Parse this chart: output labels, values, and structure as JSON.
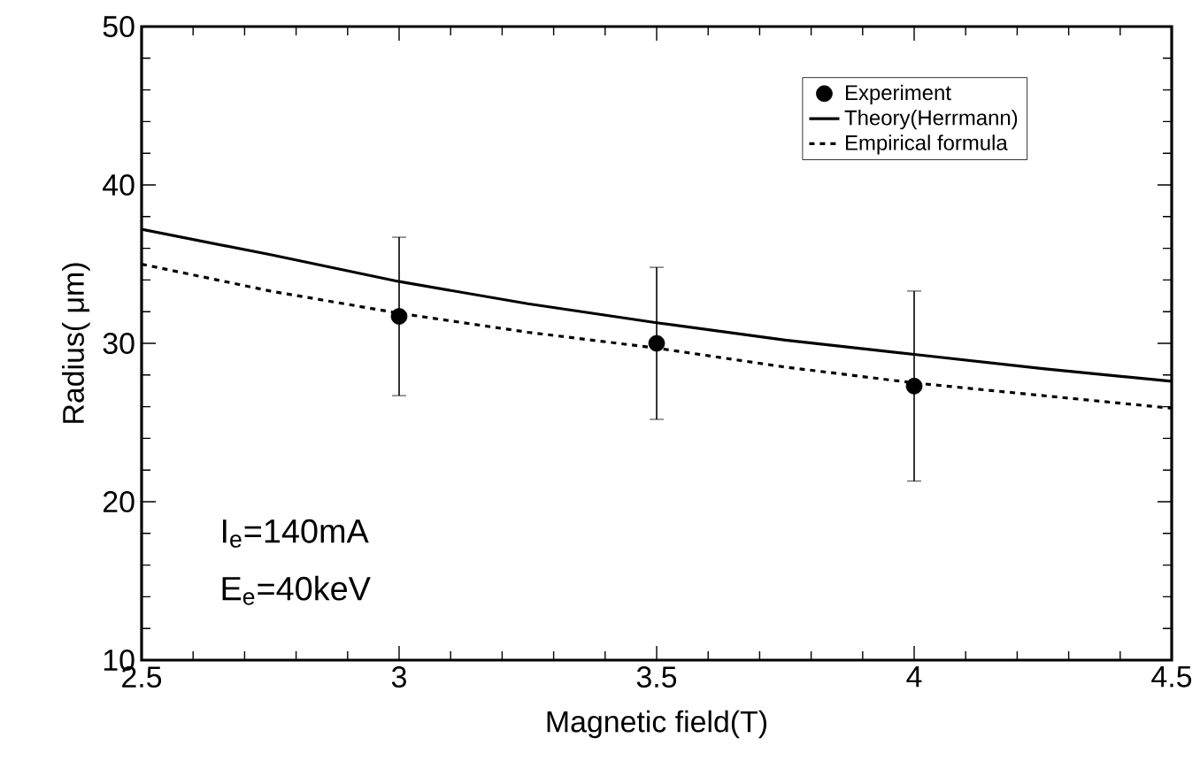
{
  "chart_data": {
    "type": "line",
    "xlabel": "Magnetic field(T)",
    "ylabel": "Radius( μm)",
    "xlim": [
      2.5,
      4.5
    ],
    "xticks": [
      2.5,
      3,
      3.5,
      4,
      4.5
    ],
    "ylim": [
      10,
      50
    ],
    "yticks": [
      10,
      20,
      30,
      40,
      50
    ],
    "grid": false,
    "legend": "top right",
    "annotations": [
      "I$_{e}$=140mA",
      "E$_{e}$=40keV"
    ],
    "series": [
      {
        "name": "Experiment",
        "type": "scatter",
        "marker": "circle",
        "color": "#000000",
        "x": [
          3,
          3.5,
          4
        ],
        "values": [
          31.7,
          30.0,
          27.3
        ],
        "errors": [
          [
            26.7,
            36.7
          ],
          [
            25.2,
            34.8
          ],
          [
            21.3,
            33.3
          ]
        ]
      },
      {
        "name": "Theory(Herrmann)",
        "marker": "none",
        "line_style": "solid",
        "color": "#000000",
        "x": [
          2.5,
          2.75,
          3,
          3.25,
          3.5,
          3.75,
          4,
          4.25,
          4.5
        ],
        "values": [
          37.2,
          35.6,
          33.9,
          32.5,
          31.3,
          30.2,
          29.3,
          28.4,
          27.6
        ]
      },
      {
        "name": "Empirical formula",
        "marker": "none",
        "line_style": "dashed",
        "color": "#000000",
        "x": [
          2.5,
          2.75,
          3,
          3.25,
          3.5,
          3.75,
          4,
          4.25,
          4.5
        ],
        "values": [
          35.0,
          33.3,
          31.9,
          30.7,
          29.7,
          28.5,
          27.5,
          26.7,
          25.9
        ]
      }
    ]
  }
}
